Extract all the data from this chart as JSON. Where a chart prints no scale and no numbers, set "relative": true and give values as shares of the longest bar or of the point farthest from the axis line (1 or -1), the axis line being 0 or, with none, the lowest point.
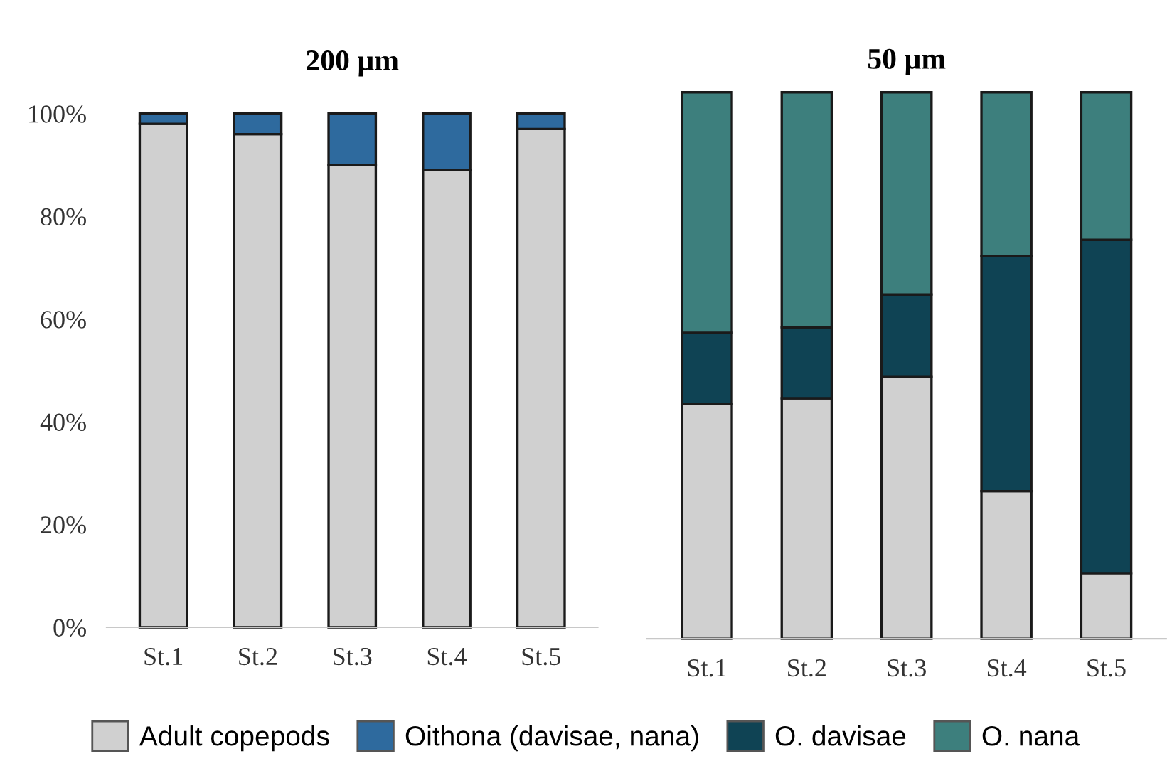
{
  "chart_data": [
    {
      "type": "bar",
      "title": "200 µm",
      "stacked": true,
      "categories": [
        "St.1",
        "St.2",
        "St.3",
        "St.4",
        "St.5"
      ],
      "ylim": [
        0,
        100
      ],
      "yticks": [
        {
          "value": 0,
          "label": "0%"
        },
        {
          "value": 20,
          "label": "20%"
        },
        {
          "value": 40,
          "label": "40%"
        },
        {
          "value": 60,
          "label": "60%"
        },
        {
          "value": 80,
          "label": "80%"
        },
        {
          "value": 100,
          "label": "100%"
        }
      ],
      "grid": false,
      "legend": "bottom",
      "series": [
        {
          "name": "Adult copepods",
          "color": "#d0d0d0",
          "values": [
            98,
            96,
            90,
            89,
            97
          ]
        },
        {
          "name": "Oithona (davisae, nana)",
          "color": "#2e6a9e",
          "values": [
            2,
            4,
            10,
            11,
            3
          ]
        }
      ]
    },
    {
      "type": "bar",
      "title": "50 µm",
      "stacked": true,
      "relative": true,
      "categories": [
        "St.1",
        "St.2",
        "St.3",
        "St.4",
        "St.5"
      ],
      "grid": false,
      "legend": "bottom",
      "series": [
        {
          "name": "Adult copepods",
          "color": "#d0d0d0",
          "values": [
            0.43,
            0.44,
            0.48,
            0.27,
            0.12
          ]
        },
        {
          "name": "O. davisae",
          "color": "#0f4354",
          "values": [
            0.13,
            0.13,
            0.15,
            0.43,
            0.61
          ]
        },
        {
          "name": "O. nana",
          "color": "#3d7f7d",
          "values": [
            0.44,
            0.43,
            0.37,
            0.3,
            0.27
          ]
        }
      ]
    }
  ]
}
